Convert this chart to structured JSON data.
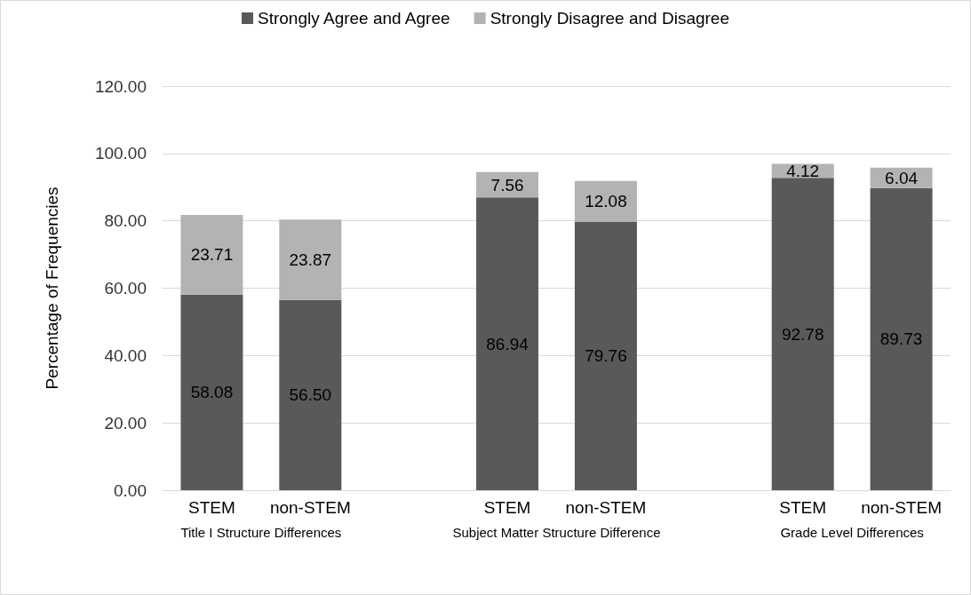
{
  "chart_data": {
    "type": "bar",
    "stacked": true,
    "ylabel": "Percentage of Frequencies",
    "categories": [
      "STEM",
      "non-STEM",
      null,
      "STEM",
      "non-STEM",
      null,
      "STEM",
      "non-STEM"
    ],
    "series": [
      {
        "name": "Strongly Agree and Agree",
        "color": "#595959",
        "values": [
          58.08,
          56.5,
          null,
          86.94,
          79.76,
          null,
          92.78,
          89.73
        ],
        "value_labels": [
          "58.08",
          "56.50",
          null,
          "86.94",
          "79.76",
          null,
          "92.78",
          "89.73"
        ]
      },
      {
        "name": "Strongly Disagree and Disagree",
        "color": "#b3b3b3",
        "values": [
          23.71,
          23.87,
          null,
          7.56,
          12.08,
          null,
          4.12,
          6.04
        ],
        "value_labels": [
          "23.71",
          "23.87",
          null,
          "7.56",
          "12.08",
          null,
          "4.12",
          "6.04"
        ]
      }
    ],
    "ylim": [
      0,
      120
    ],
    "yticks": [
      {
        "value": 0,
        "label": "0.00"
      },
      {
        "value": 20,
        "label": "20.00"
      },
      {
        "value": 40,
        "label": "40.00"
      },
      {
        "value": 60,
        "label": "60.00"
      },
      {
        "value": 80,
        "label": "80.00"
      },
      {
        "value": 100,
        "label": "100.00"
      },
      {
        "value": 120,
        "label": "120.00"
      }
    ],
    "annotations": [
      "Title I Structure Differences",
      "Subject Matter Structure Difference",
      "Grade Level Differences"
    ],
    "grid": "y",
    "legend": "top"
  }
}
